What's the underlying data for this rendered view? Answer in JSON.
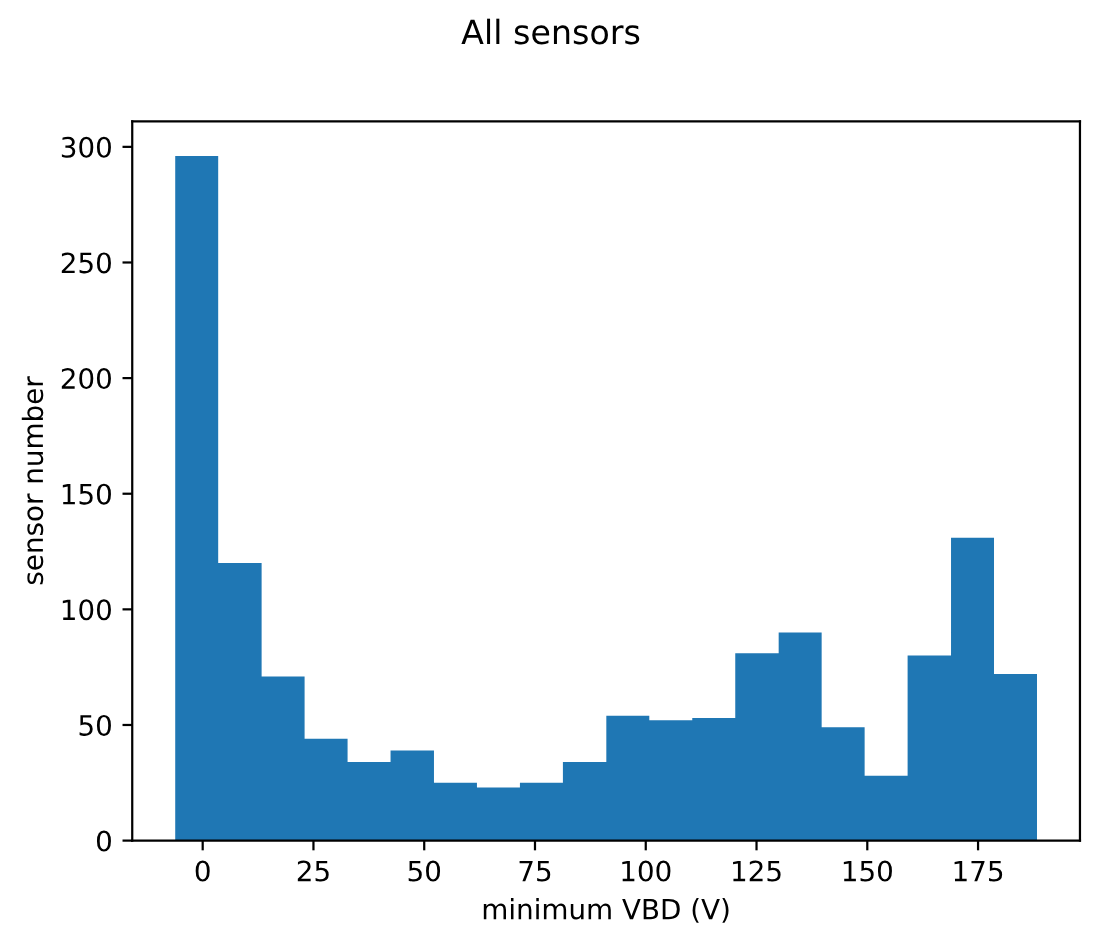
{
  "chart_data": {
    "type": "histogram",
    "title": "All sensors",
    "xlabel": "minimum VBD (V)",
    "ylabel": "sensor number",
    "bins": [
      -6.2,
      3.5,
      13.3,
      23.0,
      32.7,
      42.4,
      52.2,
      61.9,
      71.6,
      81.3,
      91.1,
      100.8,
      110.5,
      120.2,
      130.0,
      139.7,
      149.4,
      159.1,
      168.9,
      178.6,
      188.3
    ],
    "values": [
      296,
      120,
      71,
      44,
      34,
      39,
      25,
      23,
      25,
      34,
      54,
      52,
      53,
      81,
      90,
      49,
      28,
      80,
      131,
      72
    ],
    "color": "#1f77b4",
    "xlim": [
      -15.9,
      198.0
    ],
    "xticks": [
      0,
      25,
      50,
      75,
      100,
      125,
      150,
      175
    ],
    "ylim": [
      0,
      311
    ],
    "yticks": [
      0,
      50,
      100,
      150,
      200,
      250,
      300
    ],
    "grid": false
  }
}
